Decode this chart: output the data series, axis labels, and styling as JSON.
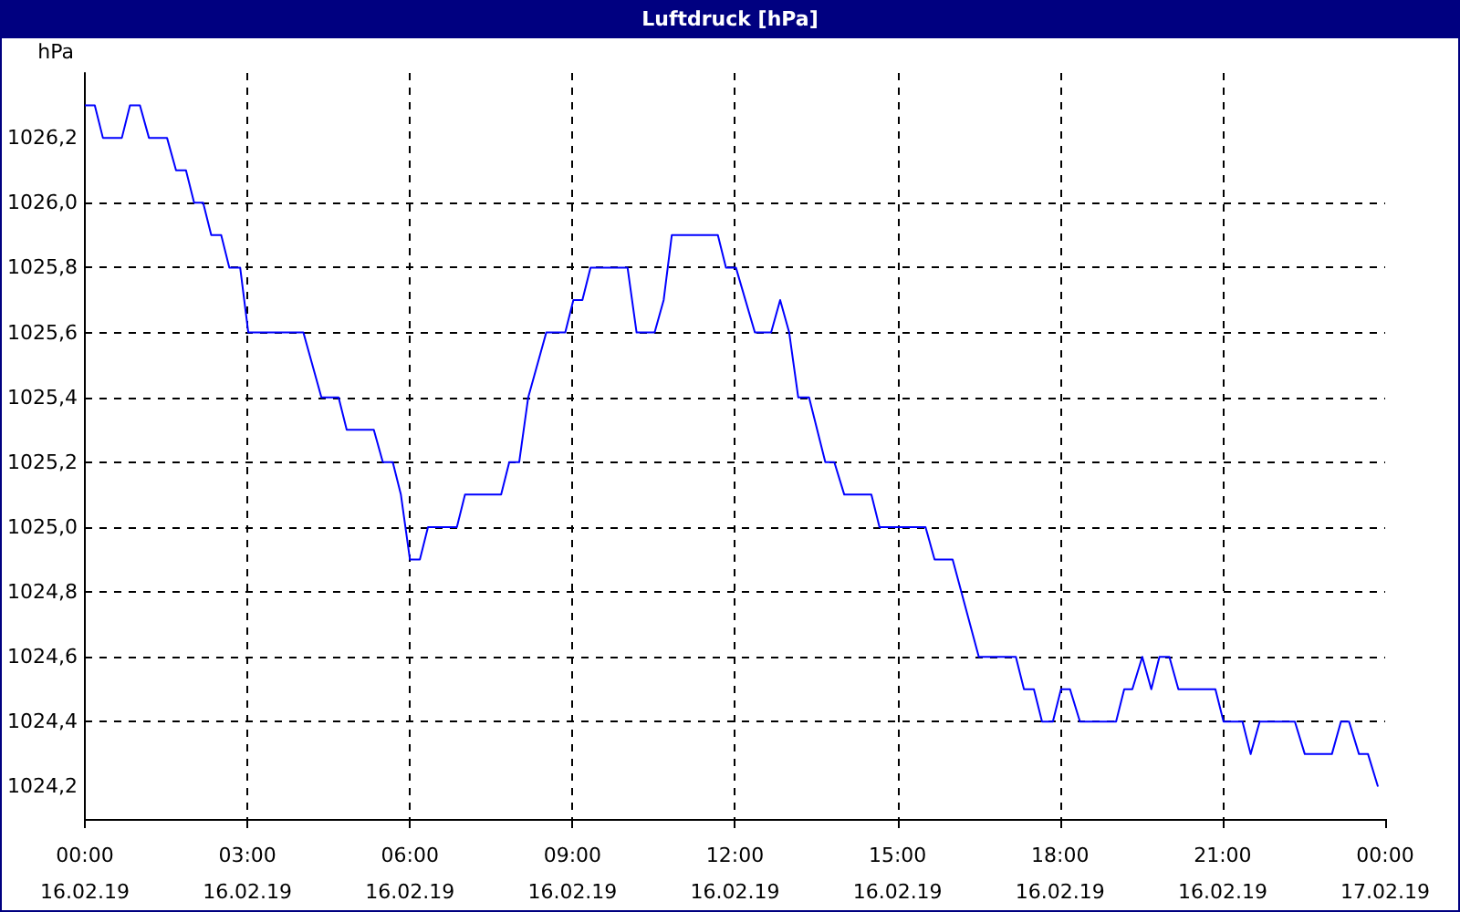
{
  "chart_data": {
    "type": "line",
    "title": "Luftdruck [hPa]",
    "ylabel": "hPa",
    "x": [
      "--02-16T00:00",
      "--02-16T00:11",
      "--02-16T00:20",
      "--02-16T00:41",
      "--02-16T00:50",
      "--02-16T01:01",
      "--02-16T01:11",
      "--02-16T01:31",
      "--02-16T01:41",
      "--02-16T01:52",
      "--02-16T02:01",
      "--02-16T02:11",
      "--02-16T02:20",
      "--02-16T02:31",
      "--02-16T02:40",
      "--02-16T02:52",
      "--02-16T03:01",
      "--02-16T04:02",
      "--02-16T04:22",
      "--02-16T04:41",
      "--02-16T04:50",
      "--02-16T05:20",
      "--02-16T05:30",
      "--02-16T05:41",
      "--02-16T05:50",
      "--02-16T06:00",
      "--02-16T06:11",
      "--02-16T06:20",
      "--02-16T06:52",
      "--02-16T07:01",
      "--02-16T07:41",
      "--02-16T07:50",
      "--02-16T08:01",
      "--02-16T08:11",
      "--02-16T08:31",
      "--02-16T08:52",
      "--02-16T09:01",
      "--02-16T09:11",
      "--02-16T09:20",
      "--02-16T10:01",
      "--02-16T10:11",
      "--02-16T10:31",
      "--02-16T10:41",
      "--02-16T10:50",
      "--02-16T11:41",
      "--02-16T11:50",
      "--02-16T12:01",
      "--02-16T12:22",
      "--02-16T12:40",
      "--02-16T12:50",
      "--02-16T13:00",
      "--02-16T13:10",
      "--02-16T13:22",
      "--02-16T13:40",
      "--02-16T13:50",
      "--02-16T14:01",
      "--02-16T14:31",
      "--02-16T14:40",
      "--02-16T15:31",
      "--02-16T15:41",
      "--02-16T16:01",
      "--02-16T16:30",
      "--02-16T17:11",
      "--02-16T17:20",
      "--02-16T17:31",
      "--02-16T17:40",
      "--02-16T17:52",
      "--02-16T18:01",
      "--02-16T18:11",
      "--02-16T18:22",
      "--02-16T19:02",
      "--02-16T19:11",
      "--02-16T19:20",
      "--02-16T19:31",
      "--02-16T19:41",
      "--02-16T19:50",
      "--02-16T20:01",
      "--02-16T20:11",
      "--02-16T20:52",
      "--02-16T21:01",
      "--02-16T21:22",
      "--02-16T21:31",
      "--02-16T21:41",
      "--02-16T22:20",
      "--02-16T22:31",
      "--02-16T23:01",
      "--02-16T23:11",
      "--02-16T23:20",
      "--02-16T23:31",
      "--02-16T23:41",
      "--02-16T23:52"
    ],
    "series": [
      {
        "color": "#0000ff",
        "values": [
          1026.3,
          1026.3,
          1026.2,
          1026.2,
          1026.3,
          1026.3,
          1026.2,
          1026.2,
          1026.1,
          1026.1,
          1026.0,
          1026.0,
          1025.9,
          1025.9,
          1025.8,
          1025.8,
          1025.6,
          1025.6,
          1025.4,
          1025.4,
          1025.3,
          1025.3,
          1025.2,
          1025.2,
          1025.1,
          1024.9,
          1024.9,
          1025.0,
          1025.0,
          1025.1,
          1025.1,
          1025.2,
          1025.2,
          1025.4,
          1025.6,
          1025.6,
          1025.7,
          1025.7,
          1025.8,
          1025.8,
          1025.6,
          1025.6,
          1025.7,
          1025.9,
          1025.9,
          1025.8,
          1025.8,
          1025.6,
          1025.6,
          1025.7,
          1025.6,
          1025.4,
          1025.4,
          1025.2,
          1025.2,
          1025.1,
          1025.1,
          1025.0,
          1025.0,
          1024.9,
          1024.9,
          1024.6,
          1024.6,
          1024.5,
          1024.5,
          1024.4,
          1024.4,
          1024.5,
          1024.5,
          1024.4,
          1024.4,
          1024.5,
          1024.5,
          1024.6,
          1024.5,
          1024.6,
          1024.6,
          1024.5,
          1024.5,
          1024.4,
          1024.4,
          1024.3,
          1024.4,
          1024.4,
          1024.3,
          1024.3,
          1024.4,
          1024.4,
          1024.3,
          1024.3,
          1024.2
        ]
      }
    ],
    "xlim": [
      "--02-16T00:00",
      "--02-17T00:00"
    ],
    "xticks": [
      {
        "value": "--02-16T00:00",
        "label": "00:00\n16.02.19"
      },
      {
        "value": "--02-16T03:00",
        "label": "03:00\n16.02.19"
      },
      {
        "value": "--02-16T06:00",
        "label": "06:00\n16.02.19"
      },
      {
        "value": "--02-16T09:00",
        "label": "09:00\n16.02.19"
      },
      {
        "value": "--02-16T12:00",
        "label": "12:00\n16.02.19"
      },
      {
        "value": "--02-16T15:00",
        "label": "15:00\n16.02.19"
      },
      {
        "value": "--02-16T18:00",
        "label": "18:00\n16.02.19"
      },
      {
        "value": "--02-16T21:00",
        "label": "21:00\n16.02.19"
      },
      {
        "value": "--02-17T00:00",
        "label": "00:00\n17.02.19"
      }
    ],
    "ylim": [
      1024.1,
      1026.4
    ],
    "yticks": [
      {
        "value": 1024.2,
        "label": "1024,2"
      },
      {
        "value": 1024.4,
        "label": "1024,4"
      },
      {
        "value": 1024.6,
        "label": "1024,6"
      },
      {
        "value": 1024.8,
        "label": "1024,8"
      },
      {
        "value": 1025.0,
        "label": "1025,0"
      },
      {
        "value": 1025.2,
        "label": "1025,2"
      },
      {
        "value": 1025.4,
        "label": "1025,4"
      },
      {
        "value": 1025.6,
        "label": "1025,6"
      },
      {
        "value": 1025.8,
        "label": "1025,8"
      },
      {
        "value": 1026.0,
        "label": "1026,0"
      },
      {
        "value": 1026.2,
        "label": "1026,2"
      }
    ],
    "grid": true,
    "marker": "none"
  }
}
